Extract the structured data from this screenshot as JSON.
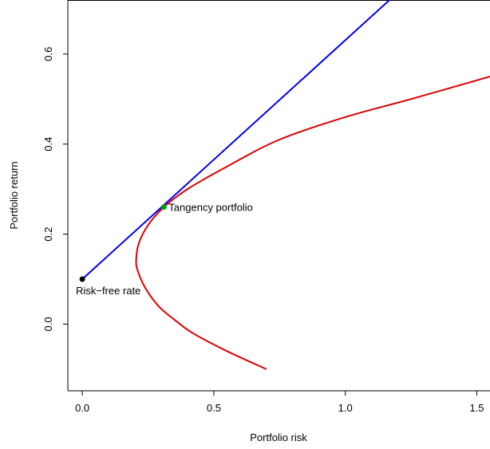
{
  "chart_data": {
    "type": "line",
    "title": "",
    "xlabel": "Portfolio risk",
    "ylabel": "Portfolio return",
    "xlim": [
      -0.055,
      1.55
    ],
    "ylim": [
      -0.148,
      0.72
    ],
    "x_ticks": [
      {
        "value": 0.0,
        "label": "0.0"
      },
      {
        "value": 0.5,
        "label": "0.5"
      },
      {
        "value": 1.0,
        "label": "1.0"
      },
      {
        "value": 1.5,
        "label": "1.5"
      }
    ],
    "y_ticks": [
      {
        "value": 0.0,
        "label": "0.0"
      },
      {
        "value": 0.2,
        "label": "0.2"
      },
      {
        "value": 0.4,
        "label": "0.4"
      },
      {
        "value": 0.6,
        "label": "0.6"
      }
    ],
    "grid": false,
    "series": [
      {
        "kind": "efficient-frontier",
        "color": "#dd0000",
        "x": [
          0.7,
          0.55,
          0.42,
          0.35,
          0.29,
          0.24,
          0.21,
          0.205,
          0.215,
          0.25,
          0.31,
          0.4,
          0.55,
          0.75,
          1.0,
          1.25,
          1.55
        ],
        "y": [
          -0.1,
          -0.06,
          -0.02,
          0.01,
          0.04,
          0.08,
          0.12,
          0.145,
          0.18,
          0.22,
          0.26,
          0.3,
          0.35,
          0.41,
          0.46,
          0.5,
          0.55
        ]
      },
      {
        "kind": "capital-market-line",
        "color": "#0000ee",
        "x": [
          0.0,
          1.2
        ],
        "y": [
          0.1,
          0.737
        ]
      }
    ],
    "points": [
      {
        "x": 0.0,
        "y": 0.1,
        "color": "#000000",
        "label": "Risk−free rate"
      },
      {
        "x": 0.31,
        "y": 0.26,
        "color": "#00a000",
        "label": "Tangency portfolio"
      }
    ]
  }
}
